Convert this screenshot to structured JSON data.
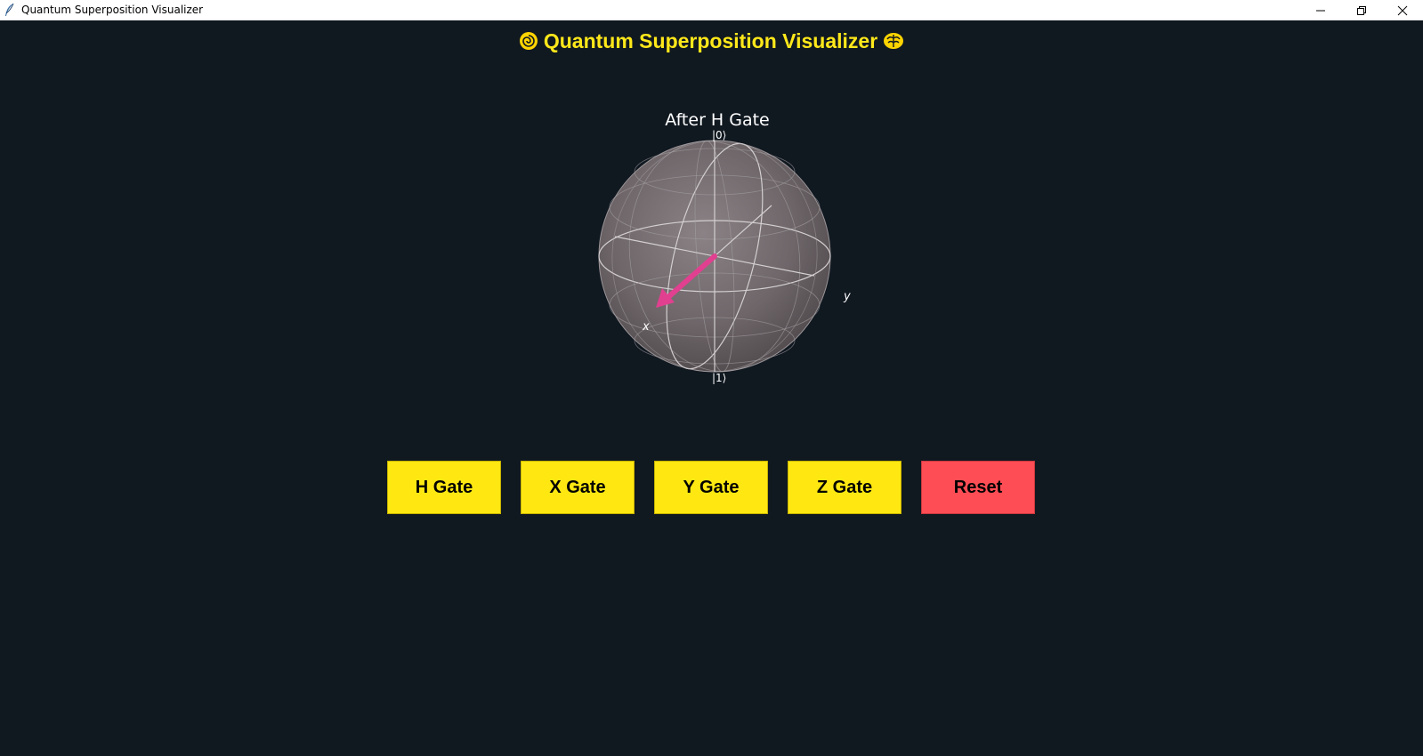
{
  "window": {
    "title": "Quantum Superposition Visualizer",
    "icon": "feather-icon"
  },
  "header": {
    "title": "Quantum Superposition Visualizer",
    "left_icon": "swirl-emoji",
    "right_icon": "brain-emoji",
    "color": "#ffe81a"
  },
  "plot": {
    "title": "After H Gate",
    "labels": {
      "top": "|0⟩",
      "bottom": "|1⟩",
      "x": "x",
      "y": "y"
    },
    "state_vector": {
      "direction": "+x",
      "color": "#e0408f"
    }
  },
  "buttons": {
    "h_gate": "H Gate",
    "x_gate": "X Gate",
    "y_gate": "Y Gate",
    "z_gate": "Z Gate",
    "reset": "Reset"
  },
  "colors": {
    "background": "#101820",
    "gate_button": "#ffe812",
    "reset_button": "#ff4d55"
  }
}
